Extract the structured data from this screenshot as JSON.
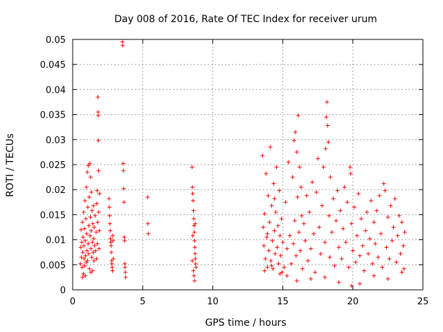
{
  "chart_data": {
    "type": "scatter",
    "title": "Day 008 of 2016, Rate Of TEC Index for receiver urum",
    "xlabel": "GPS time / hours",
    "ylabel": "ROTI / TECUs",
    "xlim": [
      0,
      25
    ],
    "ylim": [
      0,
      0.05
    ],
    "x_ticks": [
      0,
      5,
      10,
      15,
      20,
      25
    ],
    "x_tick_labels": [
      "0",
      "5",
      "10",
      "15",
      "20",
      "25"
    ],
    "y_ticks": [
      0,
      0.005,
      0.01,
      0.015,
      0.02,
      0.025,
      0.03,
      0.035,
      0.04,
      0.045,
      0.05
    ],
    "y_tick_labels": [
      "0",
      "0.005",
      "0.01",
      "0.015",
      "0.02",
      "0.025",
      "0.03",
      "0.035",
      "0.04",
      "0.045",
      "0.05"
    ],
    "grid": true,
    "marker": "+",
    "color": "#ff0000",
    "series": [
      {
        "name": "ROTI",
        "points": [
          [
            0.55,
            0.0052
          ],
          [
            0.58,
            0.0085
          ],
          [
            0.6,
            0.012
          ],
          [
            0.62,
            0.0065
          ],
          [
            0.65,
            0.0095
          ],
          [
            0.68,
            0.0045
          ],
          [
            0.7,
            0.0135
          ],
          [
            0.72,
            0.0075
          ],
          [
            0.74,
            0.0105
          ],
          [
            0.76,
            0.0032
          ],
          [
            0.78,
            0.0155
          ],
          [
            0.8,
            0.0088
          ],
          [
            0.82,
            0.0062
          ],
          [
            0.84,
            0.0122
          ],
          [
            0.86,
            0.0048
          ],
          [
            0.88,
            0.0178
          ],
          [
            0.9,
            0.0098
          ],
          [
            0.92,
            0.0068
          ],
          [
            0.94,
            0.0142
          ],
          [
            0.96,
            0.0055
          ],
          [
            0.98,
            0.0205
          ],
          [
            1.0,
            0.0112
          ],
          [
            1.02,
            0.0078
          ],
          [
            1.04,
            0.0235
          ],
          [
            1.06,
            0.0058
          ],
          [
            1.08,
            0.0165
          ],
          [
            1.1,
            0.0092
          ],
          [
            1.12,
            0.0248
          ],
          [
            1.14,
            0.0072
          ],
          [
            1.16,
            0.0128
          ],
          [
            1.18,
            0.0185
          ],
          [
            1.2,
            0.0042
          ],
          [
            1.22,
            0.0252
          ],
          [
            1.24,
            0.0108
          ],
          [
            1.26,
            0.0145
          ],
          [
            1.28,
            0.0225
          ],
          [
            1.3,
            0.0082
          ],
          [
            1.32,
            0.0118
          ],
          [
            1.34,
            0.0195
          ],
          [
            1.36,
            0.0065
          ],
          [
            1.38,
            0.0158
          ],
          [
            1.4,
            0.0095
          ],
          [
            1.42,
            0.0038
          ],
          [
            1.44,
            0.0132
          ],
          [
            1.46,
            0.0075
          ],
          [
            1.48,
            0.0168
          ],
          [
            1.5,
            0.0102
          ],
          [
            1.52,
            0.0058
          ],
          [
            1.54,
            0.0125
          ],
          [
            1.56,
            0.0088
          ],
          [
            1.6,
            0.0148
          ],
          [
            1.64,
            0.0078
          ],
          [
            1.68,
            0.0115
          ],
          [
            1.7,
            0.0062
          ],
          [
            1.72,
            0.0172
          ],
          [
            1.74,
            0.0198
          ],
          [
            1.76,
            0.0092
          ],
          [
            1.78,
            0.0135
          ],
          [
            1.8,
            0.0385
          ],
          [
            1.82,
            0.0355
          ],
          [
            1.83,
            0.0348
          ],
          [
            1.84,
            0.0298
          ],
          [
            1.85,
            0.0238
          ],
          [
            1.86,
            0.0155
          ],
          [
            1.88,
            0.0082
          ],
          [
            1.9,
            0.0118
          ],
          [
            1.92,
            0.0192
          ],
          [
            0.9,
            0.0028
          ],
          [
            1.3,
            0.0035
          ],
          [
            0.7,
            0.0025
          ],
          [
            2.6,
            0.0182
          ],
          [
            2.62,
            0.0165
          ],
          [
            2.64,
            0.0148
          ],
          [
            2.66,
            0.0132
          ],
          [
            2.68,
            0.0118
          ],
          [
            2.7,
            0.0102
          ],
          [
            2.72,
            0.0095
          ],
          [
            2.74,
            0.0088
          ],
          [
            2.76,
            0.0075
          ],
          [
            2.78,
            0.0058
          ],
          [
            2.8,
            0.0052
          ],
          [
            2.82,
            0.0045
          ],
          [
            2.84,
            0.0038
          ],
          [
            2.86,
            0.0108
          ],
          [
            2.88,
            0.0098
          ],
          [
            2.9,
            0.0062
          ],
          [
            3.55,
            0.0495
          ],
          [
            3.57,
            0.0488
          ],
          [
            3.6,
            0.0252
          ],
          [
            3.62,
            0.0238
          ],
          [
            3.64,
            0.0202
          ],
          [
            3.66,
            0.0175
          ],
          [
            3.68,
            0.0105
          ],
          [
            3.7,
            0.0098
          ],
          [
            3.72,
            0.0052
          ],
          [
            3.74,
            0.0045
          ],
          [
            3.76,
            0.0035
          ],
          [
            3.78,
            0.0025
          ],
          [
            5.35,
            0.0185
          ],
          [
            5.37,
            0.0132
          ],
          [
            5.4,
            0.0112
          ],
          [
            8.52,
            0.0245
          ],
          [
            8.55,
            0.0205
          ],
          [
            8.57,
            0.0192
          ],
          [
            8.6,
            0.0178
          ],
          [
            8.62,
            0.0158
          ],
          [
            8.64,
            0.0142
          ],
          [
            8.66,
            0.0128
          ],
          [
            8.68,
            0.0115
          ],
          [
            8.7,
            0.0098
          ],
          [
            8.72,
            0.0085
          ],
          [
            8.74,
            0.0072
          ],
          [
            8.76,
            0.0062
          ],
          [
            8.78,
            0.0052
          ],
          [
            8.8,
            0.0045
          ],
          [
            8.62,
            0.0038
          ],
          [
            8.66,
            0.0028
          ],
          [
            8.7,
            0.0018
          ],
          [
            8.58,
            0.0108
          ],
          [
            8.75,
            0.0132
          ],
          [
            8.54,
            0.0058
          ],
          [
            13.55,
            0.0268
          ],
          [
            13.6,
            0.0125
          ],
          [
            13.65,
            0.0088
          ],
          [
            13.7,
            0.0152
          ],
          [
            13.75,
            0.0062
          ],
          [
            13.8,
            0.0232
          ],
          [
            13.85,
            0.0105
          ],
          [
            13.9,
            0.0045
          ],
          [
            13.95,
            0.0188
          ],
          [
            14.0,
            0.0078
          ],
          [
            14.05,
            0.0135
          ],
          [
            14.1,
            0.0285
          ],
          [
            14.15,
            0.0058
          ],
          [
            14.2,
            0.0168
          ],
          [
            14.25,
            0.0098
          ],
          [
            14.3,
            0.0042
          ],
          [
            14.35,
            0.0212
          ],
          [
            14.4,
            0.0118
          ],
          [
            14.45,
            0.0072
          ],
          [
            14.5,
            0.0155
          ],
          [
            14.55,
            0.0245
          ],
          [
            14.6,
            0.0085
          ],
          [
            14.65,
            0.0128
          ],
          [
            14.7,
            0.0052
          ],
          [
            14.75,
            0.0198
          ],
          [
            14.8,
            0.0108
          ],
          [
            14.85,
            0.0068
          ],
          [
            14.9,
            0.0142
          ],
          [
            14.95,
            0.0035
          ],
          [
            15.0,
            0.0095
          ],
          [
            13.7,
            0.0038
          ],
          [
            14.2,
            0.0048
          ],
          [
            14.8,
            0.0032
          ],
          [
            13.9,
            0.0112
          ],
          [
            14.4,
            0.0182
          ],
          [
            15.1,
            0.0045
          ],
          [
            15.2,
            0.0175
          ],
          [
            15.3,
            0.0082
          ],
          [
            15.4,
            0.0255
          ],
          [
            15.5,
            0.0108
          ],
          [
            15.6,
            0.0052
          ],
          [
            15.7,
            0.0225
          ],
          [
            15.75,
            0.0092
          ],
          [
            15.8,
            0.0298
          ],
          [
            15.85,
            0.0138
          ],
          [
            15.9,
            0.0315
          ],
          [
            15.95,
            0.0068
          ],
          [
            16.0,
            0.0275
          ],
          [
            16.05,
            0.0185
          ],
          [
            16.1,
            0.0348
          ],
          [
            16.15,
            0.0115
          ],
          [
            16.2,
            0.0245
          ],
          [
            16.25,
            0.0078
          ],
          [
            16.3,
            0.0205
          ],
          [
            16.35,
            0.0148
          ],
          [
            16.4,
            0.0042
          ],
          [
            16.5,
            0.0132
          ],
          [
            16.6,
            0.0098
          ],
          [
            16.7,
            0.0188
          ],
          [
            16.8,
            0.0058
          ],
          [
            16.9,
            0.0155
          ],
          [
            17.0,
            0.0082
          ],
          [
            17.1,
            0.0215
          ],
          [
            17.2,
            0.0112
          ],
          [
            17.3,
            0.0035
          ],
          [
            17.4,
            0.0195
          ],
          [
            17.5,
            0.0262
          ],
          [
            17.6,
            0.0125
          ],
          [
            17.7,
            0.0072
          ],
          [
            17.8,
            0.0168
          ],
          [
            17.9,
            0.0245
          ],
          [
            18.0,
            0.0095
          ],
          [
            18.05,
            0.0282
          ],
          [
            18.1,
            0.0345
          ],
          [
            18.15,
            0.0375
          ],
          [
            18.2,
            0.0328
          ],
          [
            18.25,
            0.0295
          ],
          [
            18.3,
            0.0148
          ],
          [
            18.35,
            0.0065
          ],
          [
            18.4,
            0.0225
          ],
          [
            18.5,
            0.0115
          ],
          [
            18.6,
            0.0182
          ],
          [
            18.7,
            0.0048
          ],
          [
            18.8,
            0.0138
          ],
          [
            18.9,
            0.0198
          ],
          [
            19.0,
            0.0085
          ],
          [
            19.1,
            0.0158
          ],
          [
            19.2,
            0.0062
          ],
          [
            19.3,
            0.0122
          ],
          [
            19.4,
            0.0205
          ],
          [
            19.5,
            0.0095
          ],
          [
            19.6,
            0.0175
          ],
          [
            19.7,
            0.0045
          ],
          [
            19.8,
            0.0245
          ],
          [
            19.85,
            0.0232
          ],
          [
            19.9,
            0.0132
          ],
          [
            20.0,
            0.0078
          ],
          [
            20.1,
            0.0165
          ],
          [
            20.2,
            0.0055
          ],
          [
            20.3,
            0.0108
          ],
          [
            20.4,
            0.0192
          ],
          [
            20.5,
            0.0068
          ],
          [
            20.6,
            0.0142
          ],
          [
            20.7,
            0.0088
          ],
          [
            20.8,
            0.0038
          ],
          [
            20.9,
            0.0118
          ],
          [
            21.0,
            0.0155
          ],
          [
            21.1,
            0.0072
          ],
          [
            21.2,
            0.0102
          ],
          [
            21.3,
            0.0178
          ],
          [
            21.4,
            0.0052
          ],
          [
            21.5,
            0.0135
          ],
          [
            21.6,
            0.0092
          ],
          [
            21.7,
            0.0158
          ],
          [
            21.8,
            0.0065
          ],
          [
            21.9,
            0.0188
          ],
          [
            22.0,
            0.0112
          ],
          [
            22.1,
            0.0045
          ],
          [
            22.2,
            0.0212
          ],
          [
            22.3,
            0.0198
          ],
          [
            22.4,
            0.0085
          ],
          [
            22.5,
            0.0145
          ],
          [
            22.6,
            0.0062
          ],
          [
            22.7,
            0.0168
          ],
          [
            22.8,
            0.0098
          ],
          [
            22.9,
            0.0125
          ],
          [
            23.0,
            0.0182
          ],
          [
            23.1,
            0.0055
          ],
          [
            23.2,
            0.0108
          ],
          [
            23.3,
            0.0148
          ],
          [
            23.4,
            0.0072
          ],
          [
            23.5,
            0.0135
          ],
          [
            23.6,
            0.0088
          ],
          [
            23.65,
            0.0042
          ],
          [
            23.7,
            0.0115
          ],
          [
            15.3,
            0.0028
          ],
          [
            16.0,
            0.0018
          ],
          [
            17.0,
            0.0022
          ],
          [
            18.0,
            0.0025
          ],
          [
            19.0,
            0.0015
          ],
          [
            19.9,
            0.0008
          ],
          [
            20.5,
            0.0012
          ],
          [
            21.5,
            0.0028
          ],
          [
            22.5,
            0.0022
          ],
          [
            23.5,
            0.0035
          ]
        ]
      }
    ]
  }
}
